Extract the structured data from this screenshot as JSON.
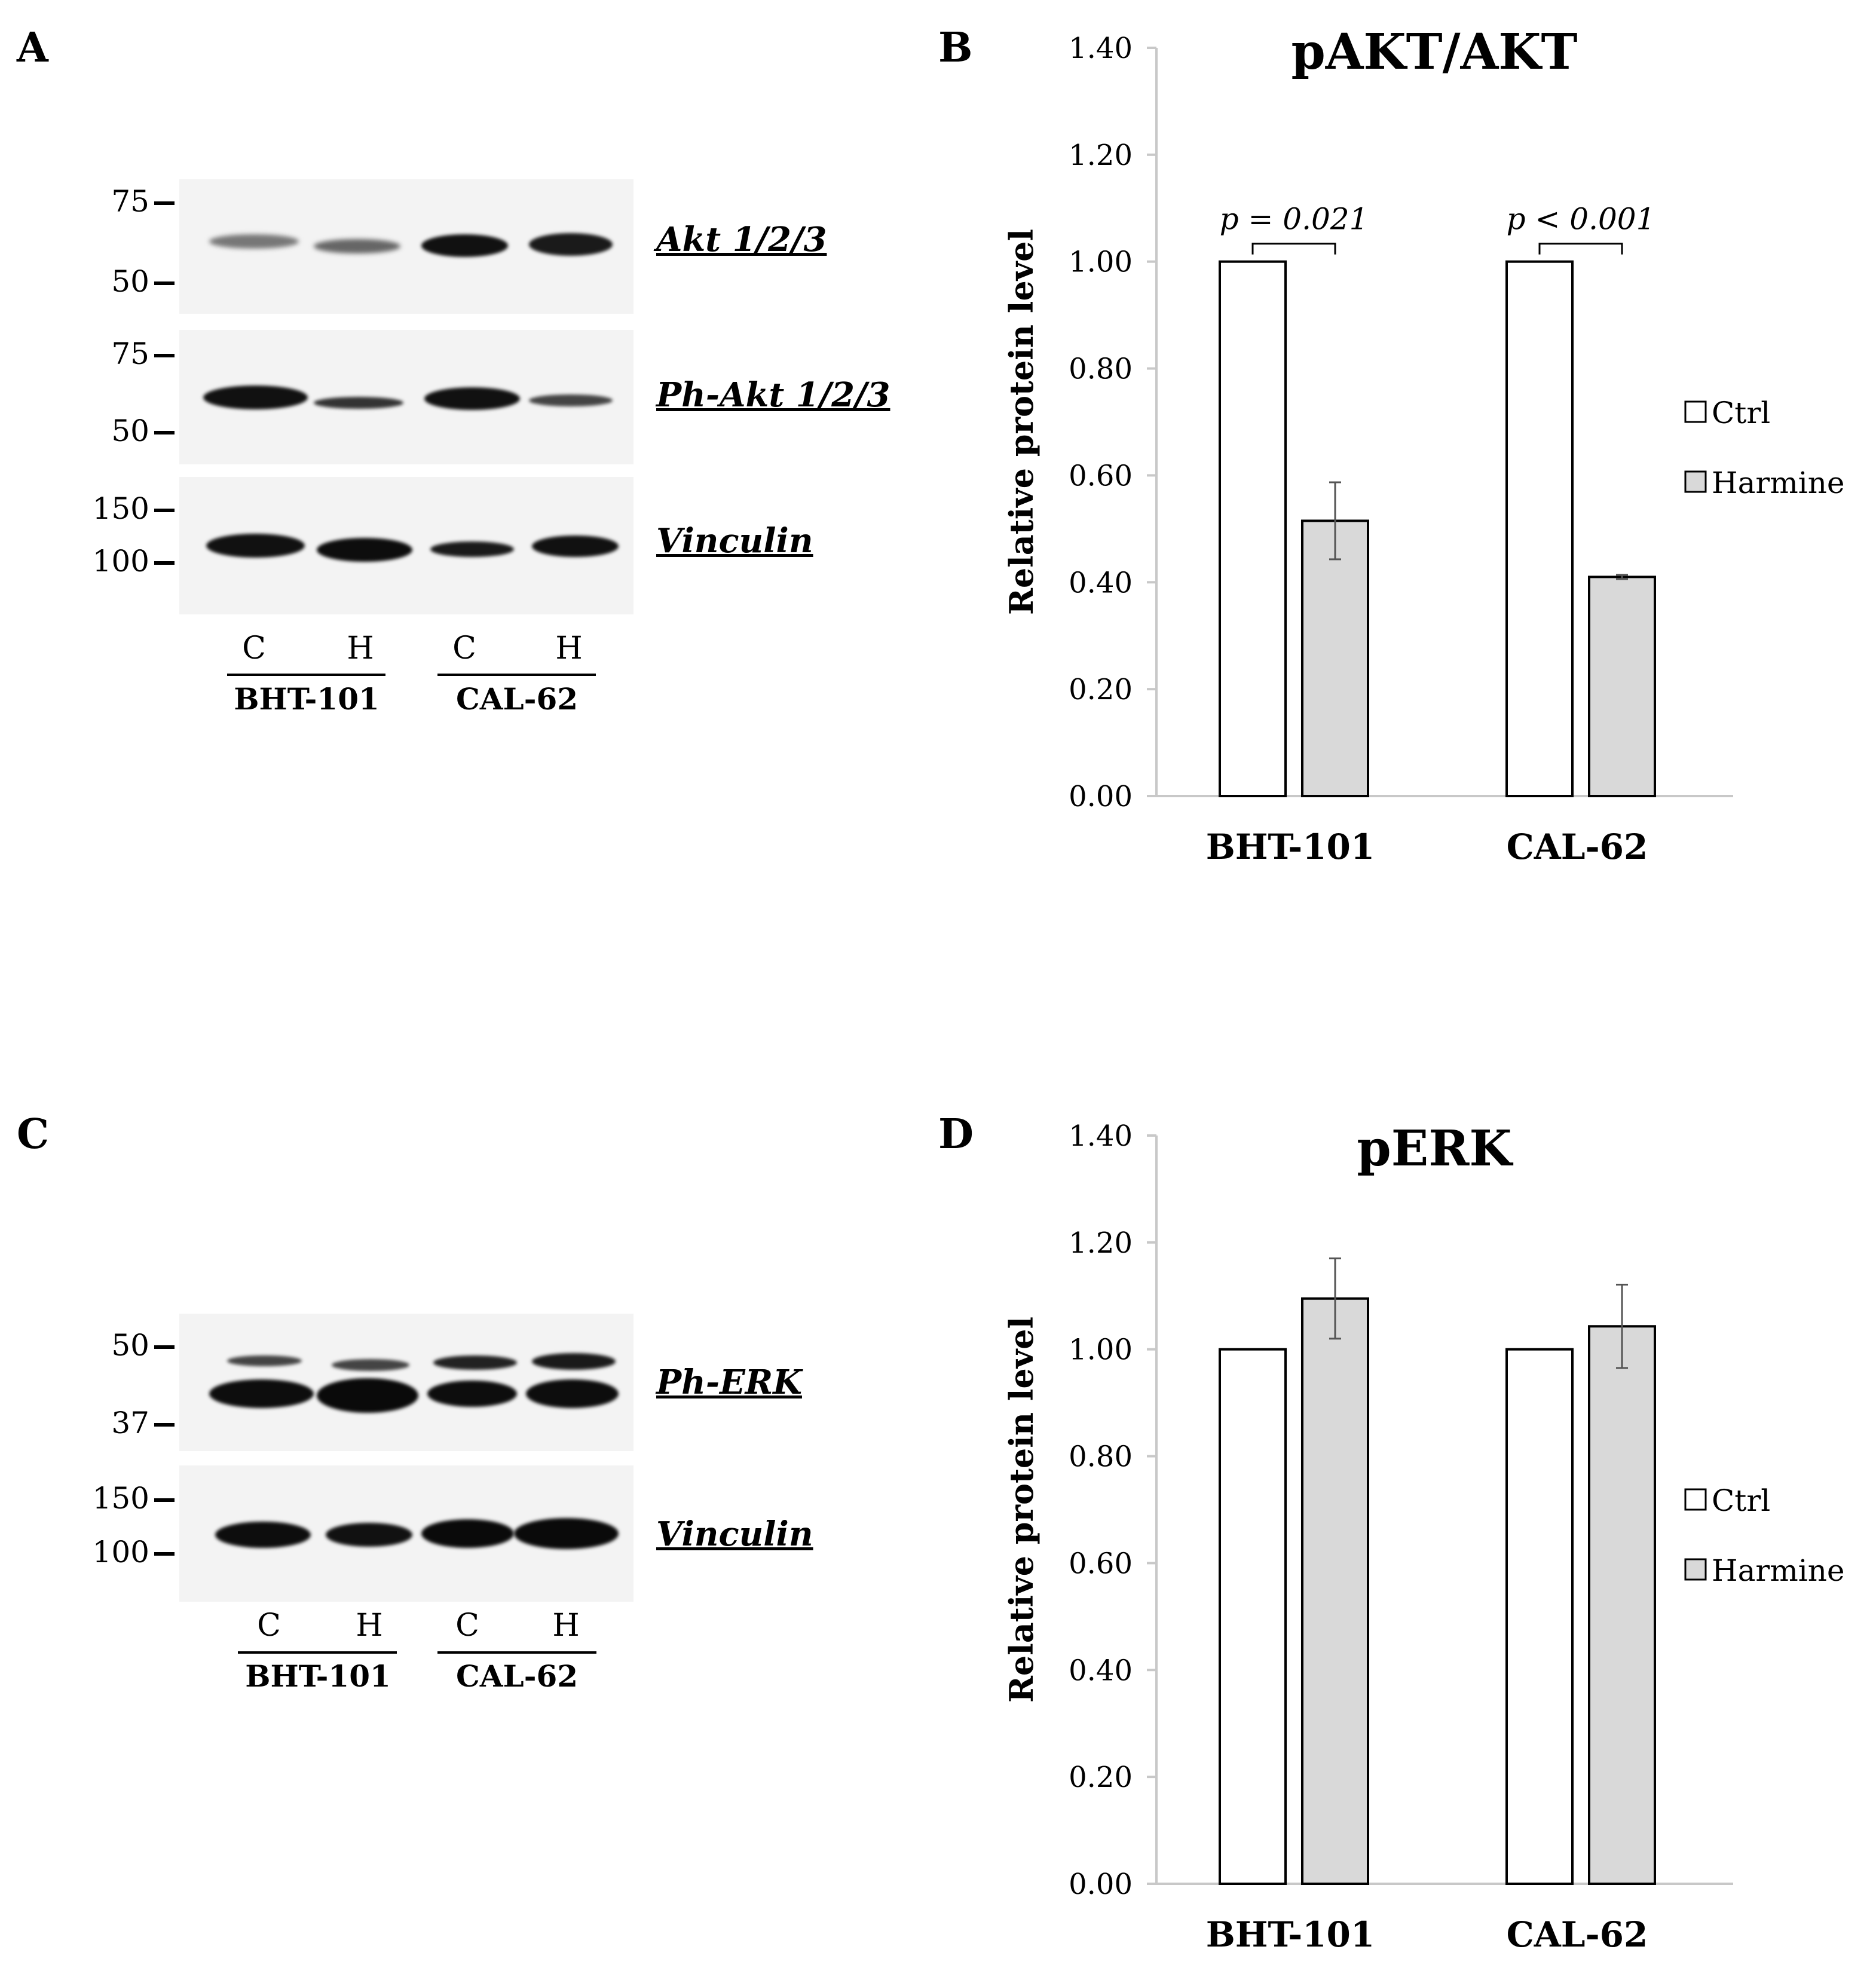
{
  "panels": {
    "A": {
      "letter": "A",
      "blots": [
        {
          "label": "Akt 1/2/3",
          "markers": [
            "75",
            "50"
          ]
        },
        {
          "label": "Ph-Akt 1/2/3",
          "markers": [
            "75",
            "50"
          ]
        },
        {
          "label": "Vinculin",
          "markers": [
            "150",
            "100"
          ]
        }
      ],
      "lanes": [
        "C",
        "H",
        "C",
        "H"
      ],
      "cell_lines": [
        "BHT-101",
        "CAL-62"
      ]
    },
    "C": {
      "letter": "C",
      "blots": [
        {
          "label": "Ph-ERK",
          "markers": [
            "50",
            "37"
          ]
        },
        {
          "label": "Vinculin",
          "markers": [
            "150",
            "100"
          ]
        }
      ],
      "lanes": [
        "C",
        "H",
        "C",
        "H"
      ],
      "cell_lines": [
        "BHT-101",
        "CAL-62"
      ]
    },
    "B": {
      "letter": "B"
    },
    "D": {
      "letter": "D"
    }
  },
  "chart_data": [
    {
      "type": "bar",
      "title": "pAKT/AKT",
      "ylabel": "Relative protein level",
      "xlabel": "",
      "ylim": [
        0,
        1.4
      ],
      "yticks": [
        "0.00",
        "0.20",
        "0.40",
        "0.60",
        "0.80",
        "1.00",
        "1.20",
        "1.40"
      ],
      "categories": [
        "BHT-101",
        "CAL-62"
      ],
      "series": [
        {
          "name": "Ctrl",
          "values": [
            1.0,
            1.0
          ],
          "errors": [
            0,
            0
          ],
          "color": "#ffffff"
        },
        {
          "name": "Harmine",
          "values": [
            0.515,
            0.41
          ],
          "errors": [
            0.072,
            0.004
          ],
          "color": "#d9d9d9"
        }
      ],
      "annotations": [
        "p = 0.021",
        "p < 0.001"
      ],
      "legend": "right",
      "grid": false
    },
    {
      "type": "bar",
      "title": "pERK",
      "ylabel": "Relative protein level",
      "xlabel": "",
      "ylim": [
        0,
        1.4
      ],
      "yticks": [
        "0.00",
        "0.20",
        "0.40",
        "0.60",
        "0.80",
        "1.00",
        "1.20",
        "1.40"
      ],
      "categories": [
        "BHT-101",
        "CAL-62"
      ],
      "series": [
        {
          "name": "Ctrl",
          "values": [
            1.0,
            1.0
          ],
          "errors": [
            0,
            0
          ],
          "color": "#ffffff"
        },
        {
          "name": "Harmine",
          "values": [
            1.095,
            1.043
          ],
          "errors": [
            0.075,
            0.078
          ],
          "color": "#d9d9d9"
        }
      ],
      "annotations": [],
      "legend": "right",
      "grid": false
    }
  ]
}
